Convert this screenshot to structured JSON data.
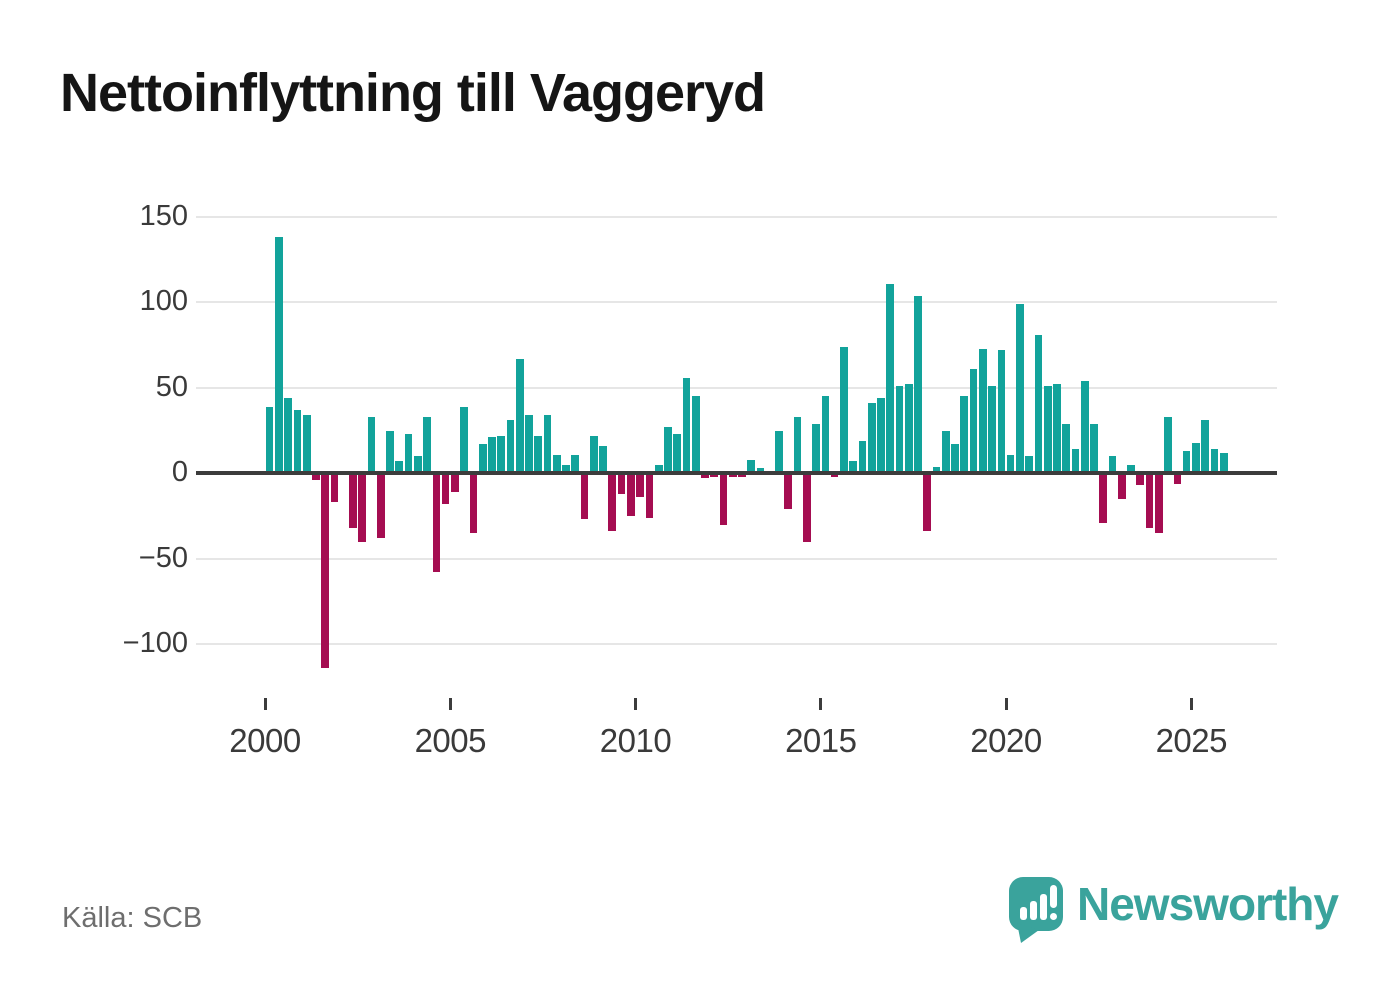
{
  "title": "Nettoinflyttning till Vaggeryd",
  "source": "Källa: SCB",
  "branding": {
    "logo_text": "Newsworthy",
    "logo_icon": "newsworthy-speech-bubble-bar-chart-icon"
  },
  "colors": {
    "positive_bar": "#12a39b",
    "negative_bar": "#a50d51",
    "zero_axis": "#3c3c3c",
    "gridline": "#e6e6e6",
    "tick_text": "#3a3a3a",
    "muted_text": "#6e6e6e",
    "brand_teal": "#3aa39c"
  },
  "chart_data": {
    "type": "bar",
    "title": "Nettoinflyttning till Vaggeryd",
    "unit": "persons per quarter (net migration)",
    "frequency": "quarterly",
    "grid": true,
    "legend": "none",
    "ylim": [
      -125,
      160
    ],
    "y_ticks": [
      150,
      100,
      50,
      0,
      -50,
      -100
    ],
    "y_tick_labels": [
      "150",
      "100",
      "50",
      "0",
      "−50",
      "−100"
    ],
    "x_tick_labels": [
      "2000",
      "2005",
      "2010",
      "2015",
      "2020",
      "2025"
    ],
    "series_by_year": [
      {
        "year": 2000,
        "q": [
          39,
          138,
          44,
          37
        ]
      },
      {
        "year": 2001,
        "q": [
          34,
          -4,
          -114,
          -17
        ]
      },
      {
        "year": 2002,
        "q": [
          0,
          -32,
          -40,
          33
        ]
      },
      {
        "year": 2003,
        "q": [
          -38,
          25,
          7,
          23
        ]
      },
      {
        "year": 2004,
        "q": [
          10,
          33,
          -58,
          -18
        ]
      },
      {
        "year": 2005,
        "q": [
          -11,
          39,
          -35,
          17
        ]
      },
      {
        "year": 2006,
        "q": [
          21,
          22,
          31,
          67
        ]
      },
      {
        "year": 2007,
        "q": [
          34,
          22,
          34,
          11
        ]
      },
      {
        "year": 2008,
        "q": [
          5,
          11,
          -27,
          22
        ]
      },
      {
        "year": 2009,
        "q": [
          16,
          -34,
          -12,
          -25
        ]
      },
      {
        "year": 2010,
        "q": [
          -14,
          -26,
          5,
          27
        ]
      },
      {
        "year": 2011,
        "q": [
          23,
          56,
          45,
          -3
        ]
      },
      {
        "year": 2012,
        "q": [
          -2,
          -30,
          -2,
          -2
        ]
      },
      {
        "year": 2013,
        "q": [
          8,
          3,
          0,
          25
        ]
      },
      {
        "year": 2014,
        "q": [
          -21,
          33,
          -40,
          29
        ]
      },
      {
        "year": 2015,
        "q": [
          45,
          -2,
          74,
          7
        ]
      },
      {
        "year": 2016,
        "q": [
          19,
          41,
          44,
          111
        ]
      },
      {
        "year": 2017,
        "q": [
          51,
          52,
          104,
          -34
        ]
      },
      {
        "year": 2018,
        "q": [
          4,
          25,
          17,
          45
        ]
      },
      {
        "year": 2019,
        "q": [
          61,
          73,
          51,
          72
        ]
      },
      {
        "year": 2020,
        "q": [
          11,
          99,
          10,
          81
        ]
      },
      {
        "year": 2021,
        "q": [
          51,
          52,
          29,
          14
        ]
      },
      {
        "year": 2022,
        "q": [
          54,
          29,
          -29,
          10
        ]
      },
      {
        "year": 2023,
        "q": [
          -15,
          5,
          -7,
          -32
        ]
      },
      {
        "year": 2024,
        "q": [
          -35,
          33,
          -6,
          13
        ]
      },
      {
        "year": 2025,
        "q": [
          18,
          31,
          14,
          12
        ]
      }
    ]
  }
}
